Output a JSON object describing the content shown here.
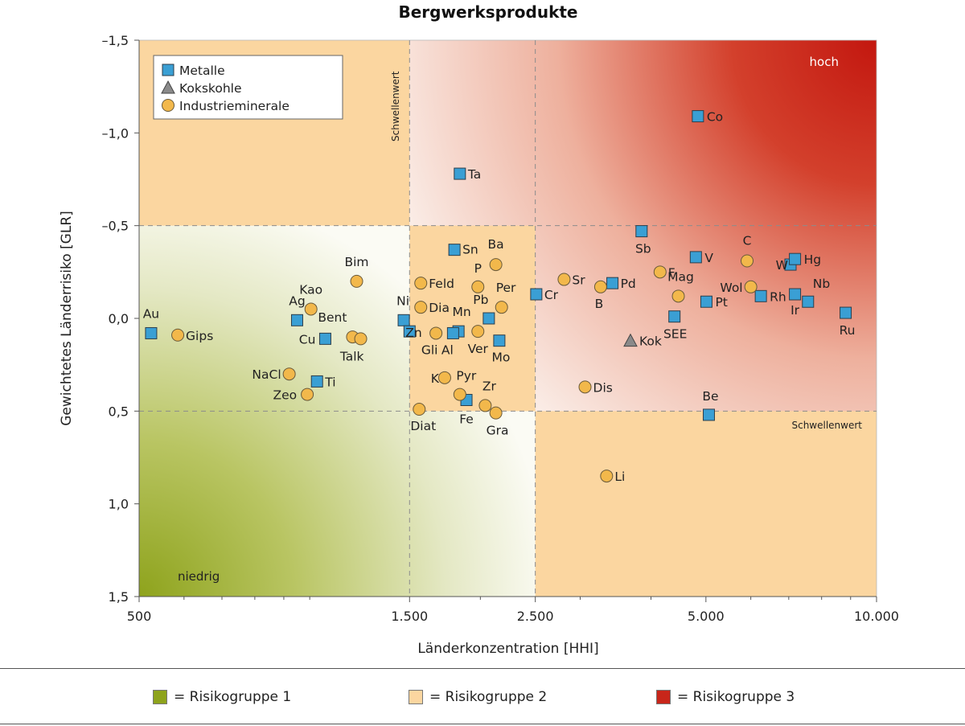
{
  "chart_data": {
    "type": "scatter",
    "title": "Bergwerksprodukte",
    "xlabel": "Länderkonzentration [HHI]",
    "ylabel": "Gewichtetes Länderrisiko [GLR]",
    "x_scale": "log",
    "xlim": [
      500,
      10000
    ],
    "ylim": [
      1.5,
      -1.5
    ],
    "x_ticks": [
      500,
      1500,
      2500,
      5000,
      10000
    ],
    "x_tick_labels": [
      "500",
      "1.500",
      "2.500",
      "5.000",
      "10.000"
    ],
    "y_ticks": [
      -1.5,
      -1.0,
      -0.5,
      0.0,
      0.5,
      1.0,
      1.5
    ],
    "y_tick_labels": [
      "–1,5",
      "–1,0",
      "–0,5",
      "0,0",
      "0,5",
      "1,0",
      "1,5"
    ],
    "thresholds": {
      "x": [
        1500,
        2500
      ],
      "y": [
        -0.5,
        0.5
      ],
      "label": "Schwellenwert"
    },
    "zone_labels": {
      "high": "hoch",
      "low": "niedrig"
    },
    "legend": {
      "position": "top-left",
      "entries": [
        {
          "label": "Metalle",
          "marker": "square",
          "color": "#3a9fd4"
        },
        {
          "label": "Kokskohle",
          "marker": "triangle",
          "color": "#8a8a8a"
        },
        {
          "label": "Industrieminerale",
          "marker": "circle",
          "color": "#f2b84b"
        }
      ]
    },
    "series": [
      {
        "name": "Metalle",
        "marker": "square",
        "color": "#3a9fd4",
        "points": [
          {
            "label": "Au",
            "x": 525,
            "y": 0.08
          },
          {
            "label": "Ag",
            "x": 950,
            "y": 0.01
          },
          {
            "label": "Cu",
            "x": 1065,
            "y": 0.11
          },
          {
            "label": "Ti",
            "x": 1030,
            "y": 0.34
          },
          {
            "label": "Ni",
            "x": 1465,
            "y": 0.01
          },
          {
            "label": "Zn",
            "x": 1500,
            "y": 0.07
          },
          {
            "label": "Sn",
            "x": 1800,
            "y": -0.37
          },
          {
            "label": "Ta",
            "x": 1840,
            "y": -0.78
          },
          {
            "label": "Mn",
            "x": 1830,
            "y": 0.07
          },
          {
            "label": "Al",
            "x": 1790,
            "y": 0.08
          },
          {
            "label": "Fe",
            "x": 1890,
            "y": 0.44
          },
          {
            "label": "Pb",
            "x": 2070,
            "y": 0.0
          },
          {
            "label": "Mo",
            "x": 2160,
            "y": 0.12
          },
          {
            "label": "Cr",
            "x": 2510,
            "y": -0.13
          },
          {
            "label": "Pd",
            "x": 3420,
            "y": -0.19
          },
          {
            "label": "Sb",
            "x": 3850,
            "y": -0.47
          },
          {
            "label": "Co",
            "x": 4840,
            "y": -1.09
          },
          {
            "label": "V",
            "x": 4800,
            "y": -0.33
          },
          {
            "label": "SEE",
            "x": 4400,
            "y": -0.01
          },
          {
            "label": "Pt",
            "x": 5010,
            "y": -0.09
          },
          {
            "label": "Be",
            "x": 5060,
            "y": 0.52
          },
          {
            "label": "Rh",
            "x": 6250,
            "y": -0.12
          },
          {
            "label": "W",
            "x": 7050,
            "y": -0.29
          },
          {
            "label": "Hg",
            "x": 7180,
            "y": -0.32
          },
          {
            "label": "Ir",
            "x": 7180,
            "y": -0.13
          },
          {
            "label": "Nb",
            "x": 7570,
            "y": -0.09
          },
          {
            "label": "Ru",
            "x": 8820,
            "y": -0.03
          }
        ]
      },
      {
        "name": "Kokskohle",
        "marker": "triangle",
        "color": "#8a8a8a",
        "points": [
          {
            "label": "Kok",
            "x": 3680,
            "y": 0.12
          }
        ]
      },
      {
        "name": "Industrieminerale",
        "marker": "circle",
        "color": "#f2b84b",
        "points": [
          {
            "label": "Gips",
            "x": 585,
            "y": 0.09
          },
          {
            "label": "NaCl",
            "x": 920,
            "y": 0.3
          },
          {
            "label": "Zeo",
            "x": 990,
            "y": 0.41
          },
          {
            "label": "Kao",
            "x": 1005,
            "y": -0.05
          },
          {
            "label": "Bim",
            "x": 1210,
            "y": -0.2
          },
          {
            "label": "Bent",
            "x": 1190,
            "y": 0.1
          },
          {
            "label": "Talk",
            "x": 1230,
            "y": 0.11
          },
          {
            "label": "Feld",
            "x": 1570,
            "y": -0.19
          },
          {
            "label": "Dia",
            "x": 1570,
            "y": -0.06
          },
          {
            "label": "Gli",
            "x": 1670,
            "y": 0.08
          },
          {
            "label": "Diat",
            "x": 1560,
            "y": 0.49
          },
          {
            "label": "K",
            "x": 1730,
            "y": 0.32
          },
          {
            "label": "Pyr",
            "x": 1840,
            "y": 0.41
          },
          {
            "label": "Zr",
            "x": 2040,
            "y": 0.47
          },
          {
            "label": "Gra",
            "x": 2130,
            "y": 0.51
          },
          {
            "label": "P",
            "x": 1980,
            "y": -0.17
          },
          {
            "label": "Ba",
            "x": 2130,
            "y": -0.29
          },
          {
            "label": "Per",
            "x": 2180,
            "y": -0.06
          },
          {
            "label": "Ver",
            "x": 1980,
            "y": 0.07
          },
          {
            "label": "Sr",
            "x": 2810,
            "y": -0.21
          },
          {
            "label": "B",
            "x": 3260,
            "y": -0.17
          },
          {
            "label": "Dis",
            "x": 3060,
            "y": 0.37
          },
          {
            "label": "Li",
            "x": 3340,
            "y": 0.85
          },
          {
            "label": "F",
            "x": 4150,
            "y": -0.25
          },
          {
            "label": "Mag",
            "x": 4470,
            "y": -0.12
          },
          {
            "label": "C",
            "x": 5910,
            "y": -0.31
          },
          {
            "label": "Wol",
            "x": 6000,
            "y": -0.17
          }
        ]
      }
    ],
    "risk_groups": [
      {
        "label": "= Risikogruppe 1",
        "color": "#8ea31c"
      },
      {
        "label": "= Risikogruppe 2",
        "color": "#fbd6a0"
      },
      {
        "label": "= Risikogruppe 3",
        "color": "#c8261a"
      }
    ]
  }
}
